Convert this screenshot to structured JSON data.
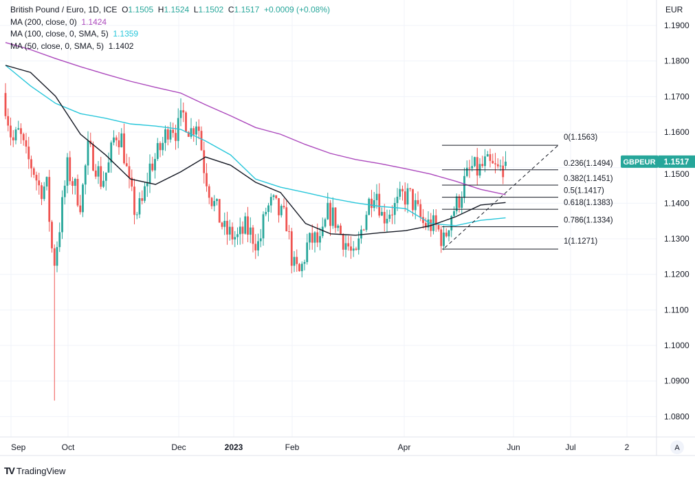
{
  "header": {
    "symbol_name": "British Pound / Euro, 1D, ICE",
    "open_label": "O",
    "open": "1.1505",
    "high_label": "H",
    "high": "1.1524",
    "low_label": "L",
    "low": "1.1502",
    "close_label": "C",
    "close": "1.1517",
    "change": "+0.0009 (+0.08%)"
  },
  "indicators": [
    {
      "label": "MA (200, close, 0)",
      "value": "1.1424",
      "color": "#ab47bc"
    },
    {
      "label": "MA (100, close, 0, SMA, 5)",
      "value": "1.1359",
      "color": "#26c6da"
    },
    {
      "label": "MA (50, close, 0, SMA, 5)",
      "value": "1.1402",
      "color": "#131722"
    }
  ],
  "currency": "EUR",
  "symbol_tag": "GBPEUR",
  "last_price": "1.1517",
  "auto_button": "A",
  "brand": "TradingView",
  "colors": {
    "up": "#26a69a",
    "down": "#ef5350",
    "grid": "#f0f3fa",
    "fib": "#131722"
  },
  "chart_data": {
    "type": "candlestick",
    "ylim": [
      1.075,
      1.197
    ],
    "y_ticks": [
      "1.1900",
      "1.1800",
      "1.1700",
      "1.1600",
      "1.1500",
      "1.1400",
      "1.1300",
      "1.1200",
      "1.1100",
      "1.1000",
      "1.0900",
      "1.0800"
    ],
    "x_ticks": [
      "Sep",
      "Oct",
      "Dec",
      "2023",
      "Feb",
      "Apr",
      "Jun",
      "Jul",
      "2"
    ],
    "x_range": [
      "2022-08-29",
      "2023-08-15"
    ],
    "bar_count": 195,
    "close_path": [
      1.168,
      1.157,
      1.16,
      1.153,
      1.15,
      1.144,
      1.145,
      1.122,
      1.135,
      1.15,
      1.145,
      1.14,
      1.155,
      1.152,
      1.146,
      1.15,
      1.16,
      1.158,
      1.145,
      1.137,
      1.14,
      1.15,
      1.153,
      1.157,
      1.163,
      1.16,
      1.165,
      1.16,
      1.164,
      1.15,
      1.142,
      1.137,
      1.132,
      1.131,
      1.13,
      1.133,
      1.131,
      1.128,
      1.138,
      1.14,
      1.137,
      1.135,
      1.122,
      1.12,
      1.128,
      1.13,
      1.128,
      1.137,
      1.136,
      1.131,
      1.128,
      1.123,
      1.133,
      1.14,
      1.145,
      1.136,
      1.138,
      1.139,
      1.142,
      1.142,
      1.138,
      1.134,
      1.134,
      1.133,
      1.129,
      1.137,
      1.14,
      1.146,
      1.15,
      1.149,
      1.151,
      1.15,
      1.149,
      1.1517
    ],
    "extremes": {
      "low": 1.0845,
      "high": 1.1695
    },
    "ma200": [
      1.1852,
      1.1832,
      1.1807,
      1.1784,
      1.1763,
      1.1743,
      1.1726,
      1.171,
      1.1677,
      1.1646,
      1.1613,
      1.1594,
      1.1565,
      1.154,
      1.1523,
      1.1511,
      1.1497,
      1.1482,
      1.1462,
      1.1439,
      1.1424
    ],
    "ma100": [
      1.1788,
      1.173,
      1.1681,
      1.1652,
      1.1639,
      1.1623,
      1.1617,
      1.1608,
      1.1575,
      1.1536,
      1.1468,
      1.1445,
      1.143,
      1.1414,
      1.1401,
      1.1391,
      1.1385,
      1.1343,
      1.1337,
      1.1352,
      1.1359
    ],
    "ma50": [
      1.1788,
      1.1768,
      1.1701,
      1.1594,
      1.1536,
      1.1468,
      1.1453,
      1.1488,
      1.153,
      1.1507,
      1.1459,
      1.143,
      1.1343,
      1.1314,
      1.131,
      1.1317,
      1.1323,
      1.1337,
      1.1362,
      1.1395,
      1.1402
    ],
    "fib_levels": [
      {
        "label": "0(1.1563)",
        "price": 1.1563
      },
      {
        "label": "0.236(1.1494)",
        "price": 1.1494
      },
      {
        "label": "0.382(1.1451)",
        "price": 1.1451
      },
      {
        "label": "0.5(1.1417)",
        "price": 1.1417
      },
      {
        "label": "0.618(1.1383)",
        "price": 1.1383
      },
      {
        "label": "0.786(1.1334)",
        "price": 1.1334
      },
      {
        "label": "1(1.1271)",
        "price": 1.1271
      }
    ]
  }
}
